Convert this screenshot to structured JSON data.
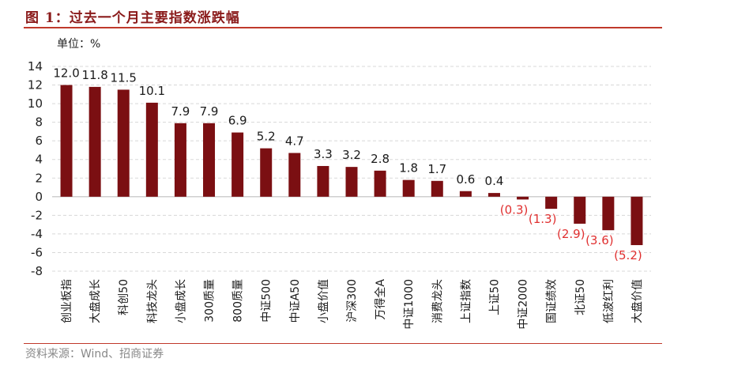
{
  "figure": {
    "title": "图 1：过去一个月主要指数涨跌幅",
    "unit": "单位：%",
    "source": "资料来源：Wind、招商证券"
  },
  "colors": {
    "bar": "#7b0f12",
    "positive_label": "#1a1a1a",
    "negative_label": "#e03030",
    "grid": "#d8d8d8",
    "axis": "#bfbfbf",
    "title": "#8a1a1a"
  },
  "chart_data": {
    "type": "bar",
    "title": "过去一个月主要指数涨跌幅",
    "xlabel": "",
    "ylabel": "%",
    "ylim": [
      -8,
      14
    ],
    "yticks": [
      14,
      12,
      10,
      8,
      6,
      4,
      2,
      0,
      -2,
      -4,
      -6,
      -8
    ],
    "grid": true,
    "categories": [
      "创业板指",
      "大盘成长",
      "科创50",
      "科技龙头",
      "小盘成长",
      "300质量",
      "800质量",
      "中证500",
      "中证A50",
      "小盘价值",
      "沪深300",
      "万得全A",
      "中证1000",
      "消费龙头",
      "上证指数",
      "上证50",
      "中证2000",
      "国证绩效",
      "北证50",
      "低波红利",
      "大盘价值"
    ],
    "values": [
      12.0,
      11.8,
      11.5,
      10.1,
      7.9,
      7.9,
      6.9,
      5.2,
      4.7,
      3.3,
      3.2,
      2.8,
      1.8,
      1.7,
      0.6,
      0.4,
      -0.3,
      -1.3,
      -2.9,
      -3.6,
      -5.2
    ],
    "data_labels": [
      "12.0",
      "11.8",
      "11.5",
      "10.1",
      "7.9",
      "7.9",
      "6.9",
      "5.2",
      "4.7",
      "3.3",
      "3.2",
      "2.8",
      "1.8",
      "1.7",
      "0.6",
      "0.4",
      "(0.3)",
      "(1.3)",
      "(2.9)",
      "(3.6)",
      "(5.2)"
    ]
  }
}
